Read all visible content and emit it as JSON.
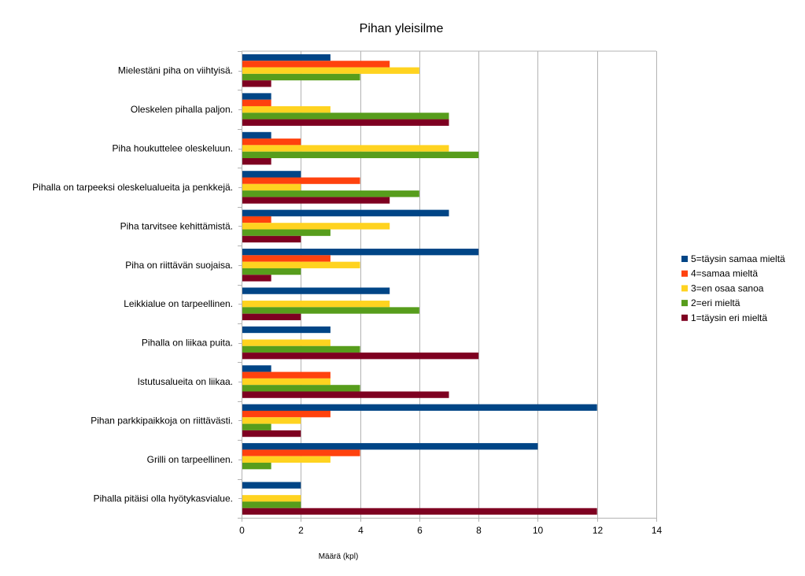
{
  "chart_data": {
    "type": "bar",
    "orientation": "horizontal",
    "title": "Pihan yleisilme",
    "xlabel": "Määrä (kpl)",
    "ylabel": "",
    "xlim": [
      0,
      14
    ],
    "xticks": [
      0,
      2,
      4,
      6,
      8,
      10,
      12,
      14
    ],
    "grid": true,
    "legend_position": "right",
    "categories": [
      "Mielestäni piha on viihtyisä.",
      "Oleskelen pihalla paljon.",
      "Piha houkuttelee oleskeluun.",
      "Pihalla on tarpeeksi oleskelualueita ja penkkejä.",
      "Piha tarvitsee kehittämistä.",
      "Piha on riittävän suojaisa.",
      "Leikkialue on tarpeellinen.",
      "Pihalla on liikaa puita.",
      "Istutusalueita on liikaa.",
      "Pihan parkkipaikkoja on riittävästi.",
      "Grilli on tarpeellinen.",
      "Pihalla pitäisi olla hyötykasvialue."
    ],
    "series": [
      {
        "name": "5=täysin samaa mieltä",
        "color": "#004586",
        "values": [
          3,
          1,
          1,
          2,
          7,
          8,
          5,
          3,
          1,
          12,
          10,
          2
        ]
      },
      {
        "name": "4=samaa mieltä",
        "color": "#ff420e",
        "values": [
          5,
          1,
          2,
          4,
          1,
          3,
          0,
          0,
          3,
          3,
          4,
          0
        ]
      },
      {
        "name": "3=en osaa sanoa",
        "color": "#ffd320",
        "values": [
          6,
          3,
          7,
          2,
          5,
          4,
          5,
          3,
          3,
          2,
          3,
          2
        ]
      },
      {
        "name": "2=eri mieltä",
        "color": "#579d1c",
        "values": [
          4,
          7,
          8,
          6,
          3,
          2,
          6,
          4,
          4,
          1,
          1,
          2
        ]
      },
      {
        "name": "1=täysin eri mieltä",
        "color": "#7e0021",
        "values": [
          1,
          7,
          1,
          5,
          2,
          1,
          2,
          8,
          7,
          2,
          0,
          12
        ]
      }
    ]
  }
}
